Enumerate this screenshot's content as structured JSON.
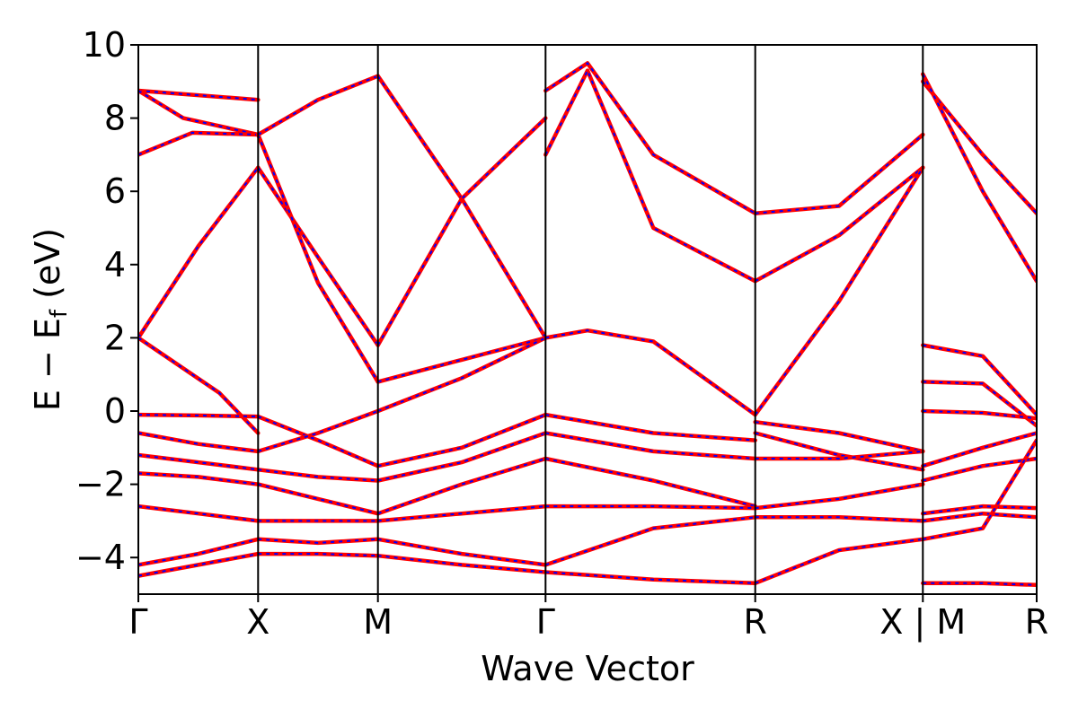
{
  "chart_data": {
    "type": "line",
    "title": "",
    "xlabel": "Wave Vector",
    "ylabel_main": "E − E",
    "ylabel_sub": "f",
    "ylabel_unit": " (eV)",
    "ylim": [
      -5,
      10
    ],
    "yticks": [
      -4,
      -2,
      0,
      2,
      4,
      6,
      8,
      10
    ],
    "ytick_labels": [
      "−4",
      "−2",
      "0",
      "2",
      "4",
      "6",
      "8",
      "10"
    ],
    "xlim": [
      0,
      1
    ],
    "kpoint_labels": [
      "Γ",
      "X",
      "M",
      "Γ",
      "R",
      "X | M",
      "R"
    ],
    "kpoint_positions": [
      0.0,
      0.1333,
      0.2667,
      0.4533,
      0.6867,
      0.8733,
      1.0
    ],
    "colors": {
      "band_primary": "#ff0000",
      "band_overlay": "#0000ff",
      "frame": "#000000"
    },
    "series": [
      {
        "x": [
          0,
          0.1333
        ],
        "y": [
          8.75,
          8.5
        ]
      },
      {
        "x": [
          0,
          0.05,
          0.1333
        ],
        "y": [
          8.75,
          8.0,
          7.55
        ]
      },
      {
        "x": [
          0,
          0.06,
          0.1333
        ],
        "y": [
          7.0,
          7.6,
          7.55
        ]
      },
      {
        "x": [
          0,
          0.0667,
          0.1333
        ],
        "y": [
          2.0,
          4.5,
          6.65
        ]
      },
      {
        "x": [
          0,
          0.09,
          0.1333
        ],
        "y": [
          2.0,
          0.5,
          -0.6
        ]
      },
      {
        "x": [
          0,
          0.0667,
          0.1333
        ],
        "y": [
          -0.1,
          -0.12,
          -0.15
        ]
      },
      {
        "x": [
          0,
          0.0667,
          0.1333
        ],
        "y": [
          -0.6,
          -0.9,
          -1.1
        ]
      },
      {
        "x": [
          0,
          0.0667,
          0.1333
        ],
        "y": [
          -1.2,
          -1.4,
          -1.6
        ]
      },
      {
        "x": [
          0,
          0.0667,
          0.1333
        ],
        "y": [
          -1.7,
          -1.8,
          -2.0
        ]
      },
      {
        "x": [
          0,
          0.0667,
          0.1333
        ],
        "y": [
          -2.6,
          -2.8,
          -3.0
        ]
      },
      {
        "x": [
          0,
          0.0667,
          0.1333
        ],
        "y": [
          -4.2,
          -3.9,
          -3.5
        ]
      },
      {
        "x": [
          0,
          0.0667,
          0.1333
        ],
        "y": [
          -4.5,
          -4.2,
          -3.9
        ]
      },
      {
        "x": [
          0.1333,
          0.2,
          0.2667
        ],
        "y": [
          6.65,
          4.2,
          1.8
        ]
      },
      {
        "x": [
          0.1333,
          0.2,
          0.2667
        ],
        "y": [
          7.55,
          3.5,
          0.8
        ]
      },
      {
        "x": [
          0.1333,
          0.2,
          0.2667
        ],
        "y": [
          7.55,
          8.5,
          9.15
        ]
      },
      {
        "x": [
          0.1333,
          0.2,
          0.2667
        ],
        "y": [
          -0.15,
          -0.8,
          -1.5
        ]
      },
      {
        "x": [
          0.1333,
          0.2,
          0.2667
        ],
        "y": [
          -1.1,
          -0.6,
          0.0
        ]
      },
      {
        "x": [
          0.1333,
          0.2,
          0.2667
        ],
        "y": [
          -1.6,
          -1.8,
          -1.9
        ]
      },
      {
        "x": [
          0.1333,
          0.2,
          0.2667
        ],
        "y": [
          -2.0,
          -2.4,
          -2.8
        ]
      },
      {
        "x": [
          0.1333,
          0.2,
          0.2667
        ],
        "y": [
          -3.0,
          -3.0,
          -3.0
        ]
      },
      {
        "x": [
          0.1333,
          0.2,
          0.2667
        ],
        "y": [
          -3.5,
          -3.6,
          -3.5
        ]
      },
      {
        "x": [
          0.1333,
          0.2,
          0.2667
        ],
        "y": [
          -3.9,
          -3.9,
          -3.95
        ]
      },
      {
        "x": [
          0.2667,
          0.36,
          0.4533
        ],
        "y": [
          9.15,
          5.8,
          2.0
        ]
      },
      {
        "x": [
          0.2667,
          0.36,
          0.4533
        ],
        "y": [
          1.8,
          5.8,
          8.0
        ]
      },
      {
        "x": [
          0.2667,
          0.36,
          0.4533
        ],
        "y": [
          0.8,
          1.4,
          2.0
        ]
      },
      {
        "x": [
          0.2667,
          0.36,
          0.4533
        ],
        "y": [
          0.0,
          0.9,
          2.0
        ]
      },
      {
        "x": [
          0.2667,
          0.36,
          0.4533
        ],
        "y": [
          -1.5,
          -1.0,
          -0.1
        ]
      },
      {
        "x": [
          0.2667,
          0.36,
          0.4533
        ],
        "y": [
          -1.9,
          -1.4,
          -0.6
        ]
      },
      {
        "x": [
          0.2667,
          0.36,
          0.4533
        ],
        "y": [
          -2.8,
          -2.0,
          -1.3
        ]
      },
      {
        "x": [
          0.2667,
          0.36,
          0.4533
        ],
        "y": [
          -3.0,
          -2.8,
          -2.6
        ]
      },
      {
        "x": [
          0.2667,
          0.36,
          0.4533
        ],
        "y": [
          -3.5,
          -3.9,
          -4.2
        ]
      },
      {
        "x": [
          0.2667,
          0.36,
          0.4533
        ],
        "y": [
          -3.95,
          -4.2,
          -4.4
        ]
      },
      {
        "x": [
          0.4533,
          0.5,
          0.5733,
          0.6867
        ],
        "y": [
          2.0,
          2.2,
          1.9,
          -0.1
        ]
      },
      {
        "x": [
          0.4533,
          0.5,
          0.5733,
          0.6867
        ],
        "y": [
          8.75,
          9.5,
          7.0,
          5.4
        ]
      },
      {
        "x": [
          0.4533,
          0.5,
          0.5733,
          0.6867
        ],
        "y": [
          7.0,
          9.3,
          5.0,
          3.55
        ]
      },
      {
        "x": [
          0.4533,
          0.5733,
          0.6867
        ],
        "y": [
          -0.1,
          -0.6,
          -0.8
        ]
      },
      {
        "x": [
          0.4533,
          0.5733,
          0.6867
        ],
        "y": [
          -0.6,
          -1.1,
          -1.3
        ]
      },
      {
        "x": [
          0.4533,
          0.5733,
          0.6867
        ],
        "y": [
          -1.3,
          -1.9,
          -2.6
        ]
      },
      {
        "x": [
          0.4533,
          0.5733,
          0.6867
        ],
        "y": [
          -2.6,
          -2.6,
          -2.65
        ]
      },
      {
        "x": [
          0.4533,
          0.5733,
          0.6867
        ],
        "y": [
          -4.2,
          -3.2,
          -2.9
        ]
      },
      {
        "x": [
          0.4533,
          0.5733,
          0.6867
        ],
        "y": [
          -4.4,
          -4.6,
          -4.7
        ]
      },
      {
        "x": [
          0.6867,
          0.78,
          0.8733
        ],
        "y": [
          5.4,
          5.6,
          7.55
        ]
      },
      {
        "x": [
          0.6867,
          0.78,
          0.8733
        ],
        "y": [
          3.55,
          4.8,
          6.65
        ]
      },
      {
        "x": [
          0.6867,
          0.78,
          0.8733
        ],
        "y": [
          -0.1,
          3.0,
          6.65
        ]
      },
      {
        "x": [
          0.6867,
          0.78,
          0.8733
        ],
        "y": [
          -0.3,
          -0.6,
          -1.1
        ]
      },
      {
        "x": [
          0.6867,
          0.78,
          0.8733
        ],
        "y": [
          -0.6,
          -1.2,
          -1.6
        ]
      },
      {
        "x": [
          0.6867,
          0.78,
          0.8733
        ],
        "y": [
          -1.3,
          -1.3,
          -1.1
        ]
      },
      {
        "x": [
          0.6867,
          0.78,
          0.8733
        ],
        "y": [
          -2.65,
          -2.4,
          -2.0
        ]
      },
      {
        "x": [
          0.6867,
          0.78,
          0.8733
        ],
        "y": [
          -2.9,
          -2.9,
          -3.0
        ]
      },
      {
        "x": [
          0.6867,
          0.78,
          0.8733
        ],
        "y": [
          -4.7,
          -3.8,
          -3.5
        ]
      },
      {
        "x": [
          0.8733,
          0.94,
          1.0
        ],
        "y": [
          1.8,
          1.5,
          -0.1
        ]
      },
      {
        "x": [
          0.8733,
          0.94,
          1.0
        ],
        "y": [
          0.8,
          0.75,
          -0.4
        ]
      },
      {
        "x": [
          0.8733,
          0.94,
          1.0
        ],
        "y": [
          0.0,
          -0.05,
          -0.2
        ]
      },
      {
        "x": [
          0.8733,
          0.94,
          1.0
        ],
        "y": [
          9.0,
          7.0,
          5.4
        ]
      },
      {
        "x": [
          0.8733,
          0.94,
          1.0
        ],
        "y": [
          9.2,
          6.0,
          3.55
        ]
      },
      {
        "x": [
          0.8733,
          0.94,
          1.0
        ],
        "y": [
          -1.5,
          -1.0,
          -0.6
        ]
      },
      {
        "x": [
          0.8733,
          0.94,
          1.0
        ],
        "y": [
          -1.9,
          -1.5,
          -1.3
        ]
      },
      {
        "x": [
          0.8733,
          0.94,
          1.0
        ],
        "y": [
          -2.8,
          -2.6,
          -2.65
        ]
      },
      {
        "x": [
          0.8733,
          0.94,
          1.0
        ],
        "y": [
          -3.0,
          -2.8,
          -2.9
        ]
      },
      {
        "x": [
          0.8733,
          0.94,
          1.0
        ],
        "y": [
          -3.5,
          -3.2,
          -0.8
        ]
      },
      {
        "x": [
          0.8733,
          0.94,
          1.0
        ],
        "y": [
          -4.7,
          -4.7,
          -4.75
        ]
      }
    ]
  }
}
